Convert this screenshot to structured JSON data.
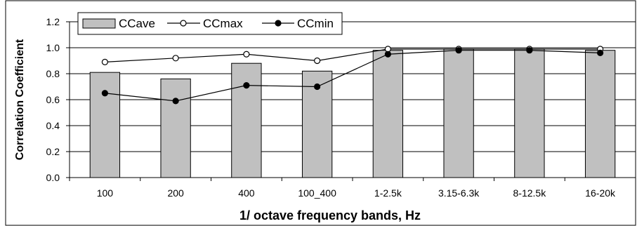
{
  "chart_data": {
    "type": "bar",
    "categories": [
      "100",
      "200",
      "400",
      "100_400",
      "1-2.5k",
      "3.15-6.3k",
      "8-12.5k",
      "16-20k"
    ],
    "series": [
      {
        "name": "CCave",
        "kind": "bar",
        "values": [
          0.81,
          0.76,
          0.88,
          0.82,
          0.98,
          0.99,
          0.99,
          0.98
        ]
      },
      {
        "name": "CCmax",
        "kind": "line",
        "marker": "open-circle",
        "values": [
          0.89,
          0.92,
          0.95,
          0.9,
          0.99,
          0.99,
          0.99,
          0.99
        ]
      },
      {
        "name": "CCmin",
        "kind": "line",
        "marker": "filled-circle",
        "values": [
          0.65,
          0.59,
          0.71,
          0.7,
          0.95,
          0.98,
          0.98,
          0.96
        ]
      }
    ],
    "xlabel": "1/ octave frequency bands, Hz",
    "ylabel": "Correlation Coefficient",
    "ylim": [
      0,
      1.2
    ],
    "yticks": [
      "0.0",
      "0.2",
      "0.4",
      "0.6",
      "0.8",
      "1.0",
      "1.2"
    ],
    "grid": true,
    "legend_position": "top-left",
    "colors": {
      "bar_fill": "#c0c0c0",
      "line": "#000000",
      "frame": "#000000"
    }
  }
}
